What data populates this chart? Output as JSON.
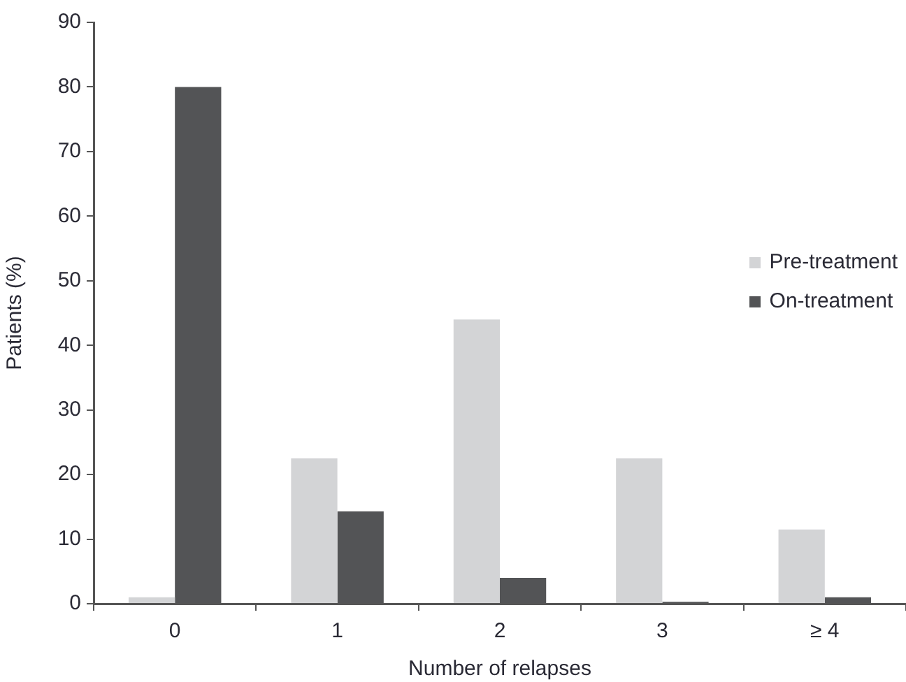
{
  "chart_data": {
    "type": "bar",
    "xlabel": "Number of relapses",
    "ylabel": "Patients (%)",
    "categories": [
      "0",
      "1",
      "2",
      "3",
      "≥ 4"
    ],
    "series": [
      {
        "name": "Pre-treatment",
        "color": "#d3d4d6",
        "values": [
          1,
          22.5,
          44,
          22.5,
          11.5
        ]
      },
      {
        "name": "On-treatment",
        "color": "#535456",
        "values": [
          80,
          14.3,
          4,
          0.3,
          1
        ]
      }
    ],
    "ylim": [
      0,
      90
    ],
    "yticks": [
      0,
      10,
      20,
      30,
      40,
      50,
      60,
      70,
      80,
      90
    ],
    "grid": false,
    "legend": "right"
  }
}
